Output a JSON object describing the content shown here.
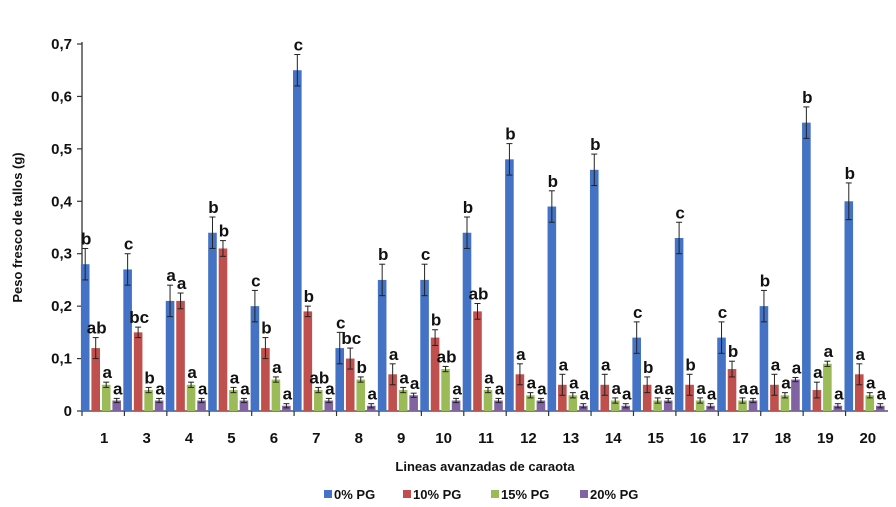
{
  "chart_data": {
    "type": "bar",
    "title": "",
    "xlabel": "Lineas avanzadas de caraota",
    "ylabel": "Peso fresco de tallos (g)",
    "ylim": [
      0,
      0.7
    ],
    "yticks": [
      "0",
      "0,1",
      "0,2",
      "0,3",
      "0,4",
      "0,5",
      "0,6",
      "0,7"
    ],
    "ytick_values": [
      0,
      0.1,
      0.2,
      0.3,
      0.4,
      0.5,
      0.6,
      0.7
    ],
    "grid": false,
    "legend_position": "bottom",
    "categories": [
      "1",
      "3",
      "4",
      "5",
      "6",
      "7",
      "8",
      "9",
      "10",
      "11",
      "12",
      "13",
      "14",
      "15",
      "16",
      "17",
      "18",
      "19",
      "20"
    ],
    "series": [
      {
        "name": "0% PG",
        "color": "#4472C4",
        "values": [
          0.28,
          0.27,
          0.21,
          0.34,
          0.2,
          0.65,
          0.12,
          0.25,
          0.25,
          0.34,
          0.48,
          0.39,
          0.46,
          0.14,
          0.33,
          0.14,
          0.2,
          0.55,
          0.4
        ],
        "errors": [
          0.03,
          0.03,
          0.03,
          0.03,
          0.03,
          0.03,
          0.03,
          0.03,
          0.03,
          0.03,
          0.03,
          0.03,
          0.03,
          0.03,
          0.03,
          0.03,
          0.03,
          0.03,
          0.035
        ],
        "sig": [
          "b",
          "c",
          "a",
          "b",
          "c",
          "c",
          "c",
          "b",
          "c",
          "b",
          "b",
          "b",
          "b",
          "c",
          "c",
          "c",
          "b",
          "b",
          "b"
        ]
      },
      {
        "name": "10% PG",
        "color": "#C0504D",
        "values": [
          0.12,
          0.15,
          0.21,
          0.31,
          0.12,
          0.19,
          0.1,
          0.07,
          0.14,
          0.19,
          0.07,
          0.05,
          0.05,
          0.05,
          0.05,
          0.08,
          0.05,
          0.04,
          0.07
        ],
        "errors": [
          0.02,
          0.01,
          0.015,
          0.015,
          0.02,
          0.01,
          0.02,
          0.02,
          0.015,
          0.015,
          0.02,
          0.02,
          0.02,
          0.015,
          0.02,
          0.015,
          0.02,
          0.015,
          0.02
        ],
        "sig": [
          "ab",
          "bc",
          "a",
          "b",
          "b",
          "b",
          "bc",
          "a",
          "b",
          "ab",
          "a",
          "a",
          "a",
          "b",
          "b",
          "b",
          "a",
          "a",
          "a"
        ]
      },
      {
        "name": "15% PG",
        "color": "#9BBB59",
        "values": [
          0.05,
          0.04,
          0.05,
          0.04,
          0.06,
          0.04,
          0.06,
          0.04,
          0.08,
          0.04,
          0.03,
          0.03,
          0.02,
          0.02,
          0.02,
          0.02,
          0.03,
          0.09,
          0.03
        ],
        "errors": [
          0.005,
          0.005,
          0.005,
          0.005,
          0.005,
          0.005,
          0.005,
          0.005,
          0.005,
          0.005,
          0.005,
          0.005,
          0.005,
          0.005,
          0.005,
          0.005,
          0.005,
          0.005,
          0.005
        ],
        "sig": [
          "a",
          "b",
          "a",
          "a",
          "a",
          "ab",
          "b",
          "a",
          "ab",
          "a",
          "a",
          "a",
          "a",
          "a",
          "a",
          "a",
          "a",
          "a",
          "a"
        ]
      },
      {
        "name": "20% PG",
        "color": "#8064A2",
        "values": [
          0.02,
          0.02,
          0.02,
          0.02,
          0.01,
          0.02,
          0.01,
          0.03,
          0.02,
          0.02,
          0.02,
          0.01,
          0.01,
          0.02,
          0.01,
          0.02,
          0.06,
          0.01,
          0.01
        ],
        "errors": [
          0.004,
          0.004,
          0.004,
          0.004,
          0.004,
          0.004,
          0.004,
          0.004,
          0.004,
          0.004,
          0.004,
          0.004,
          0.004,
          0.004,
          0.004,
          0.004,
          0.004,
          0.004,
          0.004
        ],
        "sig": [
          "a",
          "a",
          "a",
          "a",
          "a",
          "a",
          "a",
          "a",
          "a",
          "a",
          "a",
          "a",
          "a",
          "a",
          "a",
          "a",
          "a",
          "a",
          "a"
        ]
      }
    ]
  }
}
